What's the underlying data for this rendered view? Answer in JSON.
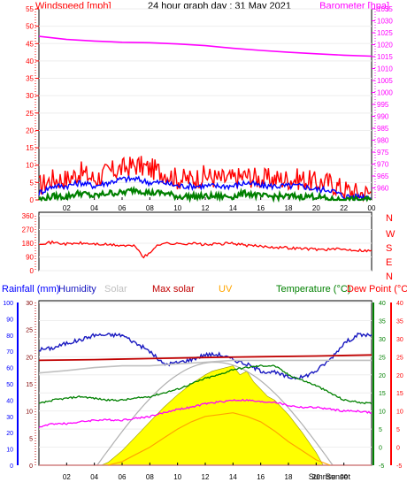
{
  "header": {
    "left_label": "Windspeed [mph]",
    "title": "24 hour graph day : 31 May 2021",
    "right_label": "Barometer [hpa]"
  },
  "compass": [
    "N",
    "W",
    "S",
    "E",
    "N"
  ],
  "bottom_labels": {
    "rain": "Rainfall (mm)",
    "humidity": "Humidity",
    "solar": "Solar",
    "max_solar": "Max solar",
    "uv": "UV",
    "temperature": "Temperature (°C)",
    "dewpoint": "Dew Point (°C)",
    "sunrise": "Sunrise",
    "sunset": "Sunset"
  },
  "colors": {
    "wind": "#ff0000",
    "avgwind": "#0000ff",
    "windlow": "#008000",
    "baro": "#ff00ff",
    "winddir": "#ff0000",
    "rain": "#0000ff",
    "humidity": "#1818c0",
    "solar": "#c0c0c0",
    "maxsolar": "#c00000",
    "uv": "#ffa500",
    "temperature": "#008000",
    "dewpoint": "#ff0000",
    "fill": "#ffff00",
    "axis": "#000000",
    "grid": "#ffffff"
  },
  "chart_data": [
    {
      "type": "line",
      "title": "24 hour graph day : 31 May 2021",
      "xlabel": "",
      "x_ticks": [
        "02",
        "04",
        "06",
        "08",
        "10",
        "12",
        "14",
        "16",
        "18",
        "20",
        "22",
        "00"
      ],
      "x_range": [
        0,
        24
      ],
      "left_axis": {
        "label": "Windspeed [mph]",
        "range": [
          0,
          55
        ],
        "ticks": [
          0,
          5,
          10,
          15,
          20,
          25,
          30,
          35,
          40,
          45,
          50,
          55
        ]
      },
      "right_axis": {
        "label": "Barometer [hpa]",
        "range": [
          955,
          1035
        ],
        "ticks": [
          960,
          965,
          970,
          975,
          980,
          985,
          990,
          995,
          1000,
          1005,
          1010,
          1015,
          1020,
          1025,
          1030,
          1035
        ]
      },
      "series": [
        {
          "name": "Windspeed",
          "axis": "left",
          "kind": "gust",
          "x": [
            0,
            1,
            2,
            3,
            4,
            5,
            6,
            7,
            8,
            9,
            10,
            11,
            12,
            13,
            14,
            15,
            16,
            17,
            18,
            19,
            20,
            21,
            22,
            23,
            24
          ],
          "y": [
            4,
            6,
            6,
            8,
            6,
            8,
            9,
            10,
            9,
            8,
            6,
            6,
            7,
            6,
            6,
            7,
            6,
            6,
            6,
            6,
            5,
            5,
            3,
            2,
            2
          ]
        },
        {
          "name": "Average wind",
          "axis": "left",
          "kind": "avg",
          "x": [
            0,
            1,
            2,
            3,
            4,
            5,
            6,
            7,
            8,
            9,
            10,
            11,
            12,
            13,
            14,
            15,
            16,
            17,
            18,
            19,
            20,
            21,
            22,
            23,
            24
          ],
          "y": [
            2,
            4,
            4,
            5,
            4,
            5,
            6,
            6,
            5,
            5,
            4,
            4,
            4,
            4,
            4,
            5,
            4,
            4,
            4,
            4,
            3,
            3,
            1,
            1,
            1
          ]
        },
        {
          "name": "Low wind",
          "axis": "left",
          "kind": "low",
          "x": [
            0,
            1,
            2,
            3,
            4,
            5,
            6,
            7,
            8,
            9,
            10,
            11,
            12,
            13,
            14,
            15,
            16,
            17,
            18,
            19,
            20,
            21,
            22,
            23,
            24
          ],
          "y": [
            0,
            1,
            1,
            2,
            1,
            2,
            2,
            3,
            2,
            2,
            1,
            1,
            1,
            1,
            1,
            2,
            1,
            1,
            1,
            1,
            1,
            0,
            0,
            0,
            0
          ]
        },
        {
          "name": "Barometer",
          "axis": "right",
          "x": [
            0,
            2,
            4,
            6,
            8,
            10,
            12,
            14,
            16,
            18,
            20,
            22,
            24
          ],
          "y": [
            1023.5,
            1022.2,
            1021.5,
            1021.0,
            1020.8,
            1020.3,
            1019.6,
            1018.5,
            1017.6,
            1016.8,
            1016.2,
            1015.6,
            1015.2
          ]
        }
      ]
    },
    {
      "type": "line",
      "title": "",
      "x_range": [
        0,
        24
      ],
      "left_axis": {
        "label": "",
        "range": [
          0,
          360
        ],
        "ticks": [
          0,
          90,
          180,
          270,
          360
        ]
      },
      "right_axis_labels": [
        "N",
        "W",
        "S",
        "E",
        "N"
      ],
      "series": [
        {
          "name": "Wind direction",
          "x": [
            0,
            1,
            2,
            3,
            4,
            5,
            6,
            7,
            7.5,
            8,
            8.5,
            9,
            10,
            11,
            12,
            13,
            14,
            15,
            16,
            17,
            18,
            19,
            20,
            21,
            22,
            23,
            24
          ],
          "y": [
            180,
            185,
            175,
            180,
            175,
            170,
            165,
            160,
            90,
            110,
            170,
            180,
            175,
            180,
            170,
            175,
            180,
            165,
            160,
            155,
            150,
            145,
            140,
            140,
            140,
            135,
            130
          ]
        }
      ]
    },
    {
      "type": "line",
      "title": "",
      "x_ticks": [
        "02",
        "04",
        "06",
        "08",
        "10",
        "12",
        "14",
        "16",
        "18",
        "20",
        "Sunrise",
        "Sunset",
        "00"
      ],
      "x_range": [
        0,
        24
      ],
      "axes": {
        "humidity": {
          "range": [
            0,
            100
          ],
          "ticks": [
            0,
            10,
            20,
            30,
            40,
            50,
            60,
            70,
            80,
            90,
            100
          ]
        },
        "rain": {
          "range": [
            0,
            30
          ],
          "ticks": [
            0,
            5,
            10,
            15,
            20,
            25,
            30
          ]
        },
        "temperature": {
          "range": [
            -5,
            40
          ],
          "ticks": [
            -5,
            0,
            5,
            10,
            15,
            20,
            25,
            30,
            35,
            40
          ]
        },
        "dewpoint": {
          "range": [
            -5,
            40
          ],
          "ticks": [
            -5,
            0,
            5,
            10,
            15,
            20,
            25,
            30,
            35,
            40
          ]
        }
      },
      "series": [
        {
          "name": "Humidity",
          "axis": "humidity",
          "x": [
            0,
            1,
            2,
            3,
            4,
            5,
            6,
            7,
            8,
            9,
            10,
            11,
            12,
            13,
            14,
            15,
            16,
            17,
            18,
            19,
            20,
            21,
            22,
            23,
            24
          ],
          "y": [
            71,
            72,
            75,
            77,
            80,
            80,
            80,
            75,
            70,
            62,
            63,
            65,
            68,
            68,
            65,
            62,
            58,
            57,
            54,
            54,
            58,
            65,
            75,
            80,
            80
          ]
        },
        {
          "name": "Max solar",
          "axis": "temperature",
          "x": [
            0,
            4,
            8,
            12,
            16,
            20,
            24
          ],
          "y": [
            24,
            24.2,
            24.5,
            24.8,
            25,
            25.2,
            25.5
          ]
        },
        {
          "name": "Solar",
          "axis": "temperature",
          "x": [
            0,
            2,
            4,
            6,
            8,
            10,
            12,
            14,
            16,
            18,
            20,
            22,
            24
          ],
          "y": [
            20.5,
            21.2,
            22,
            22.5,
            22.5,
            23,
            23.5,
            24,
            24,
            24,
            24,
            24,
            24
          ]
        },
        {
          "name": "Temperature",
          "axis": "temperature",
          "x": [
            0,
            1,
            2,
            3,
            4,
            5,
            6,
            7,
            8,
            9,
            10,
            11,
            12,
            13,
            14,
            15,
            16,
            17,
            18,
            19,
            20,
            21,
            22,
            23,
            24
          ],
          "y": [
            12,
            13,
            13.5,
            14,
            13.5,
            13,
            13,
            13.5,
            14,
            15,
            16,
            17.5,
            19,
            20,
            21.5,
            22,
            22.5,
            22.5,
            20,
            18.5,
            17,
            15,
            13,
            12.5,
            12
          ]
        },
        {
          "name": "Dew point",
          "axis": "dewpoint",
          "x": [
            0,
            1,
            2,
            3,
            4,
            5,
            6,
            7,
            8,
            9,
            10,
            11,
            12,
            13,
            14,
            15,
            16,
            17,
            18,
            19,
            20,
            21,
            22,
            23,
            24
          ],
          "y": [
            5.5,
            6.5,
            6.5,
            7,
            7.5,
            7.5,
            7.5,
            8,
            8.5,
            9.5,
            10.5,
            11,
            12,
            12.5,
            13,
            13,
            12.5,
            12.5,
            11.5,
            11,
            11,
            10.5,
            10,
            10,
            9.5
          ]
        },
        {
          "name": "Solar radiation",
          "axis": "temperature",
          "kind": "fill",
          "x": [
            4.5,
            5,
            6,
            7,
            8,
            9,
            10,
            11,
            12,
            12.5,
            13,
            13.5,
            14,
            14.5,
            15,
            15.5,
            16,
            16.5,
            17,
            18,
            19,
            20,
            20.5
          ],
          "y": [
            -5,
            -4.2,
            -1,
            3,
            7,
            11,
            14.5,
            17.5,
            20,
            21,
            21.5,
            22,
            22.5,
            20,
            21,
            18,
            16,
            14,
            13,
            9,
            4,
            -1.5,
            -5
          ]
        },
        {
          "name": "UV",
          "axis": "temperature",
          "x": [
            5,
            6,
            7,
            8,
            9,
            10,
            11,
            12,
            13,
            14,
            15,
            16,
            17,
            18,
            19,
            20,
            21
          ],
          "y": [
            -5,
            -4,
            -2,
            0,
            2.5,
            5,
            7,
            8.5,
            9,
            9.5,
            8.5,
            7,
            4.5,
            1.5,
            -1,
            -3.5,
            -5
          ]
        },
        {
          "name": "Rainfall",
          "axis": "rain",
          "x": [
            0,
            24
          ],
          "y": [
            0,
            0
          ]
        }
      ]
    }
  ]
}
